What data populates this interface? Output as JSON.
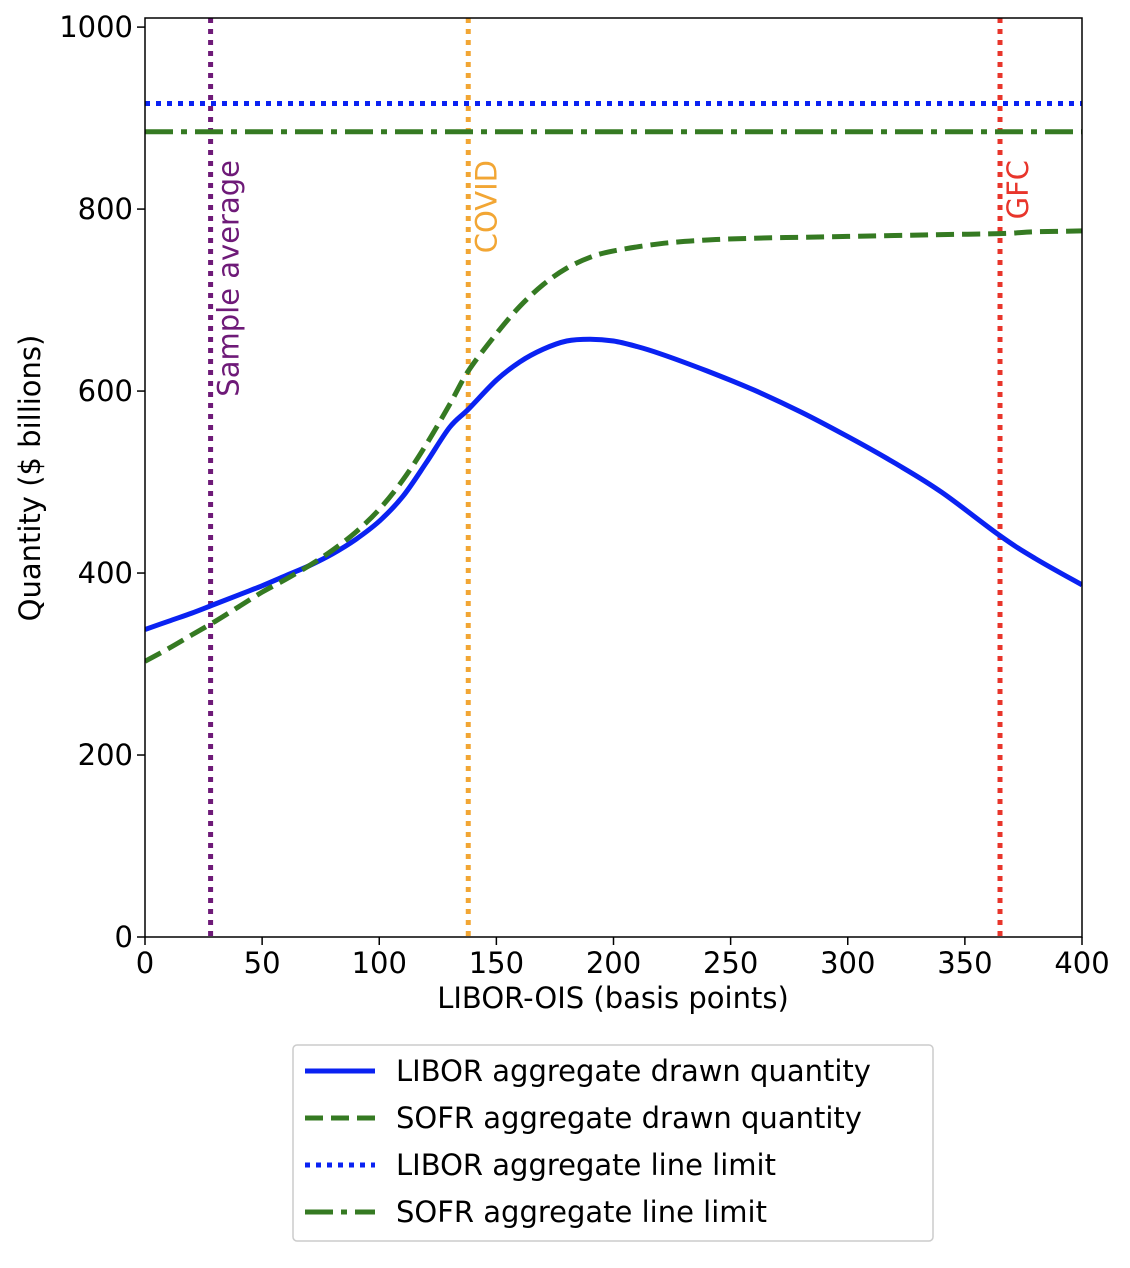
{
  "chart_data": {
    "type": "line",
    "title": "",
    "xlabel": "LIBOR-OIS (basis points)",
    "ylabel": "Quantity ($ billions)",
    "xlim": [
      0,
      400
    ],
    "ylim": [
      0,
      1010
    ],
    "xticks": [
      0,
      50,
      100,
      150,
      200,
      250,
      300,
      350,
      400
    ],
    "yticks": [
      0,
      200,
      400,
      600,
      800,
      1000
    ],
    "grid": false,
    "legend_position": "below plot",
    "series": [
      {
        "name": "LIBOR aggregate drawn quantity",
        "style": "solid",
        "color": "#0a22f2",
        "x": [
          0,
          10,
          20,
          30,
          40,
          50,
          60,
          70,
          80,
          90,
          100,
          110,
          120,
          130,
          138,
          150,
          160,
          170,
          180,
          190,
          200,
          210,
          220,
          240,
          260,
          280,
          300,
          320,
          340,
          365,
          380,
          400
        ],
        "y": [
          338,
          347,
          356,
          366,
          376,
          386,
          397,
          408,
          421,
          437,
          457,
          484,
          521,
          560,
          580,
          612,
          632,
          646,
          655,
          657,
          655,
          649,
          641,
          622,
          601,
          577,
          550,
          521,
          489,
          441,
          416,
          387
        ]
      },
      {
        "name": "SOFR aggregate drawn quantity",
        "style": "dashed",
        "color": "#357a22",
        "x": [
          0,
          10,
          20,
          30,
          40,
          50,
          60,
          70,
          80,
          90,
          100,
          110,
          120,
          130,
          138,
          150,
          160,
          170,
          180,
          190,
          200,
          220,
          240,
          260,
          280,
          300,
          320,
          340,
          365,
          380,
          400
        ],
        "y": [
          303,
          317,
          332,
          347,
          363,
          379,
          393,
          408,
          425,
          445,
          470,
          502,
          541,
          585,
          622,
          663,
          693,
          717,
          735,
          747,
          754,
          762,
          766,
          768,
          769,
          770,
          771,
          772,
          773,
          775,
          776
        ]
      },
      {
        "name": "LIBOR aggregate line limit",
        "style": "dotted",
        "color": "#0a22f2",
        "x": [
          0,
          400
        ],
        "y": [
          916,
          916
        ]
      },
      {
        "name": "SOFR aggregate line limit",
        "style": "dashdot",
        "color": "#357a22",
        "x": [
          0,
          400
        ],
        "y": [
          885,
          885
        ]
      }
    ],
    "reference_lines": [
      {
        "label": "Sample average",
        "x": 28,
        "color": "#6e1a78"
      },
      {
        "label": "COVID",
        "x": 138,
        "color": "#f2a634"
      },
      {
        "label": "GFC",
        "x": 365,
        "color": "#e8352b"
      }
    ]
  }
}
